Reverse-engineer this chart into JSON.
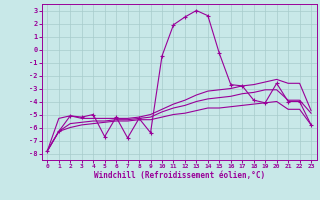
{
  "xlabel": "Windchill (Refroidissement éolien,°C)",
  "background_color": "#c8e8e8",
  "grid_color": "#a8cccc",
  "line_color": "#990099",
  "xlim": [
    -0.5,
    23.5
  ],
  "ylim": [
    -8.5,
    3.5
  ],
  "yticks": [
    -8,
    -7,
    -6,
    -5,
    -4,
    -3,
    -2,
    -1,
    0,
    1,
    2,
    3
  ],
  "xticks": [
    0,
    1,
    2,
    3,
    4,
    5,
    6,
    7,
    8,
    9,
    10,
    11,
    12,
    13,
    14,
    15,
    16,
    17,
    18,
    19,
    20,
    21,
    22,
    23
  ],
  "series_jagged": [
    -7.8,
    -6.3,
    -5.1,
    -5.2,
    -5.0,
    -6.7,
    -5.2,
    -6.8,
    -5.3,
    -6.4,
    -0.5,
    1.9,
    2.5,
    3.0,
    2.6,
    -0.3,
    -2.7,
    -2.8,
    -3.9,
    -4.1,
    -2.6,
    -4.0,
    -4.0,
    -5.8
  ],
  "series_smooth": [
    [
      -7.8,
      -5.3,
      -5.1,
      -5.3,
      -5.3,
      -5.3,
      -5.3,
      -5.3,
      -5.2,
      -5.0,
      -4.6,
      -4.2,
      -3.9,
      -3.5,
      -3.2,
      -3.1,
      -3.0,
      -2.8,
      -2.7,
      -2.5,
      -2.3,
      -2.6,
      -2.6,
      -4.7
    ],
    [
      -7.8,
      -6.3,
      -5.7,
      -5.6,
      -5.5,
      -5.5,
      -5.4,
      -5.4,
      -5.3,
      -5.2,
      -4.8,
      -4.5,
      -4.3,
      -4.0,
      -3.8,
      -3.7,
      -3.6,
      -3.4,
      -3.3,
      -3.1,
      -3.1,
      -3.9,
      -3.9,
      -4.9
    ],
    [
      -7.8,
      -6.3,
      -6.0,
      -5.8,
      -5.7,
      -5.6,
      -5.5,
      -5.5,
      -5.4,
      -5.4,
      -5.2,
      -5.0,
      -4.9,
      -4.7,
      -4.5,
      -4.5,
      -4.4,
      -4.3,
      -4.2,
      -4.1,
      -4.0,
      -4.6,
      -4.6,
      -5.8
    ]
  ]
}
